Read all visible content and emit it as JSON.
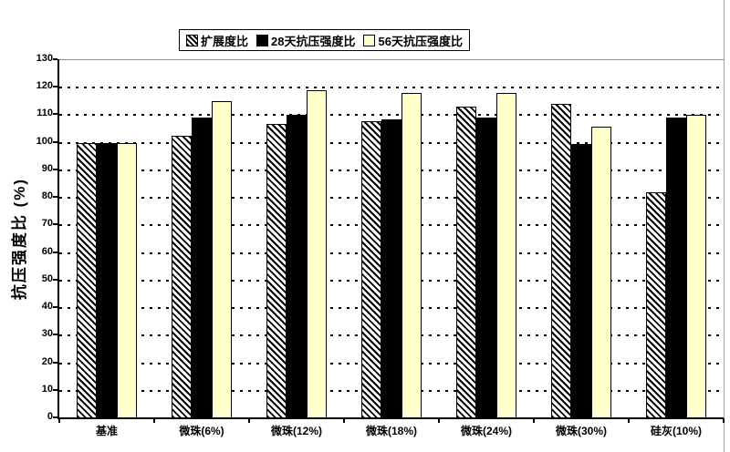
{
  "chart_data": {
    "type": "bar",
    "title": "",
    "xlabel": "",
    "ylabel": "抗压强度比 (%)",
    "ylim": [
      0,
      130
    ],
    "ytick_step": 10,
    "yticks": [
      0,
      10,
      20,
      30,
      40,
      50,
      60,
      70,
      80,
      90,
      100,
      110,
      120,
      130
    ],
    "grid": "dotted-horizontal",
    "legend_position": "top-center",
    "categories": [
      "基准",
      "微珠(6%)",
      "微珠(12%)",
      "微珠(18%)",
      "微珠(24%)",
      "微珠(30%)",
      "硅灰(10%)"
    ],
    "series": [
      {
        "name": "扩展度比",
        "style": "hatched",
        "color": "#000000",
        "fill": "#FFFFFF",
        "values": [
          100,
          102.5,
          107,
          108,
          113,
          114,
          82
        ]
      },
      {
        "name": "28天抗压强度比",
        "style": "solid",
        "color": "#000000",
        "values": [
          100,
          109,
          110,
          108.5,
          109,
          99.5,
          109
        ]
      },
      {
        "name": "56天抗压强度比",
        "style": "solid",
        "color": "#FFFFCC",
        "values": [
          100,
          115,
          119,
          118,
          118,
          106,
          110
        ]
      }
    ]
  },
  "colors": {
    "background": "#FFFFFF",
    "bar_black": "#000000",
    "bar_cream": "#FFFFCC",
    "hatch_foreground": "#000000",
    "gridline": "#000000",
    "axis": "#000000",
    "plot_border_gray": "#909090"
  }
}
